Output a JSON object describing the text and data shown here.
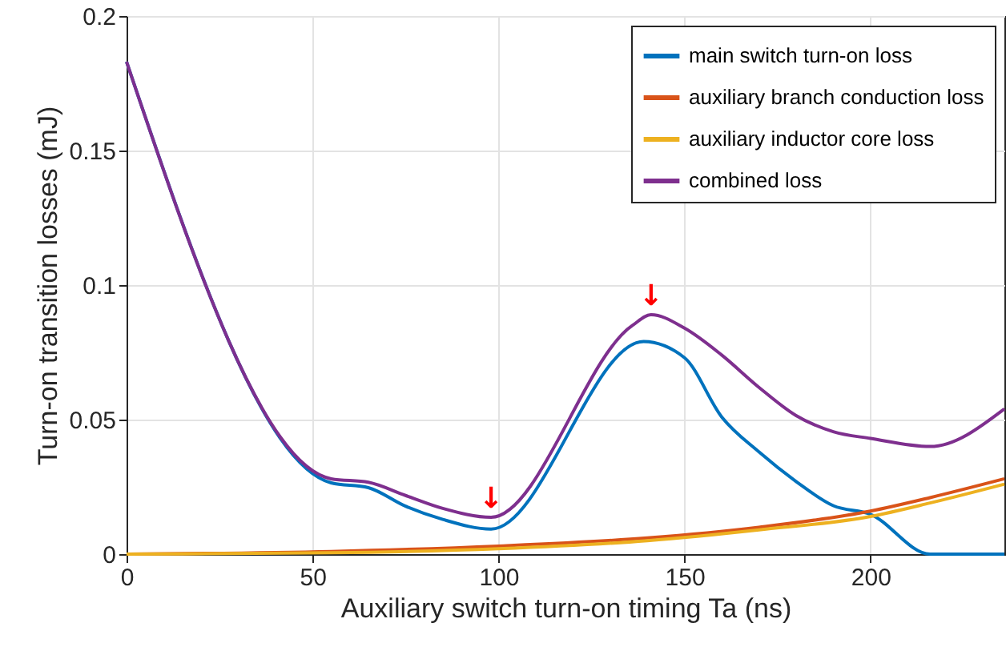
{
  "chart_data": {
    "type": "line",
    "xlabel": "Auxiliary switch turn-on timing Ta (ns)",
    "ylabel": "Turn-on transition losses (mJ)",
    "xlim": [
      0,
      236
    ],
    "ylim": [
      0,
      0.2
    ],
    "xticks": [
      0,
      50,
      100,
      150,
      200
    ],
    "yticks": [
      0,
      0.05,
      0.1,
      0.15,
      0.2
    ],
    "grid": true,
    "legend": "top right",
    "line_style": "solid",
    "marker": "none",
    "series": [
      {
        "name": "main switch turn-on loss",
        "color": "#0072bd",
        "x": [
          0,
          55,
          65,
          75,
          85,
          98,
          139,
          150,
          160,
          170,
          180,
          190,
          200,
          216,
          236
        ],
        "values": [
          0.183,
          0.0265,
          0.0247,
          0.0178,
          0.0129,
          0.0093,
          0.079,
          0.073,
          0.051,
          0.038,
          0.027,
          0.018,
          0.0148,
          0,
          0
        ]
      },
      {
        "name": "auxiliary branch conduction loss",
        "color": "#d95319",
        "x": [
          0,
          55,
          100,
          140,
          170,
          200,
          216,
          236
        ],
        "values": [
          0,
          0.001,
          0.003,
          0.006,
          0.01,
          0.016,
          0.021,
          0.028
        ]
      },
      {
        "name": "auxiliary inductor core loss",
        "color": "#edb120",
        "x": [
          0,
          55,
          100,
          140,
          170,
          200,
          216,
          236
        ],
        "values": [
          0,
          0.0005,
          0.002,
          0.005,
          0.009,
          0.014,
          0.019,
          0.026
        ]
      },
      {
        "name": "combined loss",
        "color": "#7e2f8e",
        "x": [
          0,
          55,
          65,
          75,
          85,
          98,
          136,
          141,
          150,
          160,
          170,
          180,
          190,
          200,
          216,
          236
        ],
        "values": [
          0.183,
          0.028,
          0.0267,
          0.0218,
          0.017,
          0.0137,
          0.085,
          0.089,
          0.084,
          0.074,
          0.062,
          0.0515,
          0.0455,
          0.043,
          0.04,
          0.054
        ]
      }
    ],
    "annotations": [
      {
        "text": "↓",
        "x": 98,
        "y": 0.0137
      },
      {
        "text": "↓",
        "x": 141,
        "y": 0.089
      }
    ]
  }
}
